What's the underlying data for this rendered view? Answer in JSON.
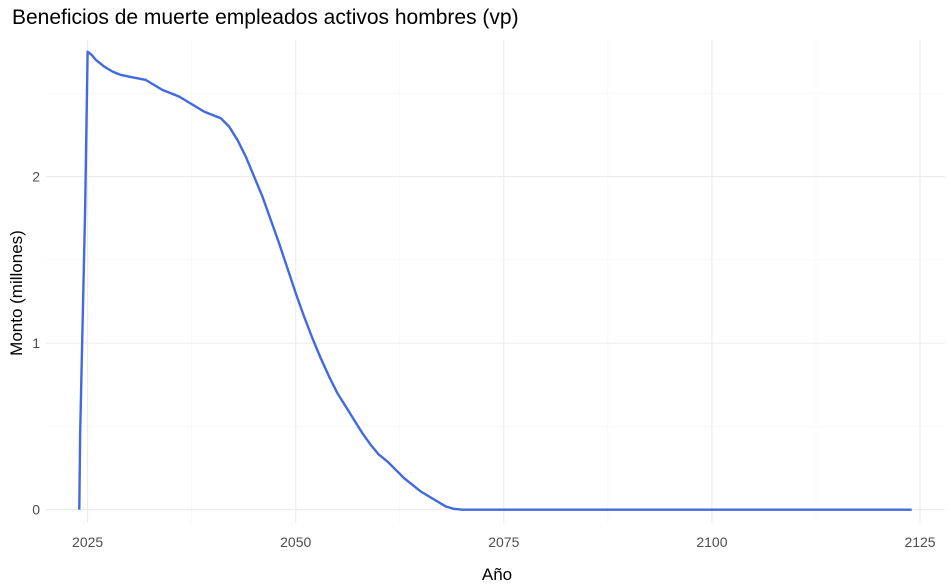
{
  "chart_data": {
    "type": "line",
    "title": "Beneficios de muerte empleados activos hombres (vp)",
    "xlabel": "Año",
    "ylabel": "Monto (millones)",
    "xlim": [
      2020,
      2128
    ],
    "ylim": [
      -0.08,
      2.82
    ],
    "x_ticks": [
      2025,
      2050,
      2075,
      2100,
      2125
    ],
    "y_ticks": [
      0,
      1,
      2
    ],
    "grid": true,
    "line_color": "#4169E1",
    "series": [
      {
        "x": [
          2024.0,
          2024.1,
          2024.3,
          2024.5,
          2024.7,
          2025.0,
          2025.5,
          2026,
          2027,
          2028,
          2029,
          2030,
          2031,
          2032,
          2033,
          2034,
          2035,
          2036,
          2037,
          2038,
          2039,
          2040,
          2041,
          2042,
          2043,
          2044,
          2045,
          2046,
          2047,
          2048,
          2049,
          2050,
          2051,
          2052,
          2053,
          2054,
          2055,
          2056,
          2057,
          2058,
          2059,
          2060,
          2061,
          2062,
          2063,
          2064,
          2065,
          2066,
          2067,
          2068,
          2069,
          2070,
          2075,
          2080,
          2090,
          2100,
          2110,
          2124
        ],
        "y": [
          0.0,
          0.45,
          0.9,
          1.35,
          1.8,
          2.75,
          2.73,
          2.7,
          2.66,
          2.63,
          2.61,
          2.6,
          2.59,
          2.58,
          2.55,
          2.52,
          2.5,
          2.48,
          2.45,
          2.42,
          2.39,
          2.37,
          2.35,
          2.3,
          2.22,
          2.12,
          2.0,
          1.88,
          1.74,
          1.6,
          1.45,
          1.3,
          1.16,
          1.03,
          0.91,
          0.8,
          0.7,
          0.62,
          0.54,
          0.46,
          0.39,
          0.33,
          0.29,
          0.24,
          0.19,
          0.15,
          0.11,
          0.08,
          0.05,
          0.02,
          0.005,
          0.0,
          0.0,
          0.0,
          0.0,
          0.0,
          0.0,
          0.0
        ]
      }
    ]
  }
}
